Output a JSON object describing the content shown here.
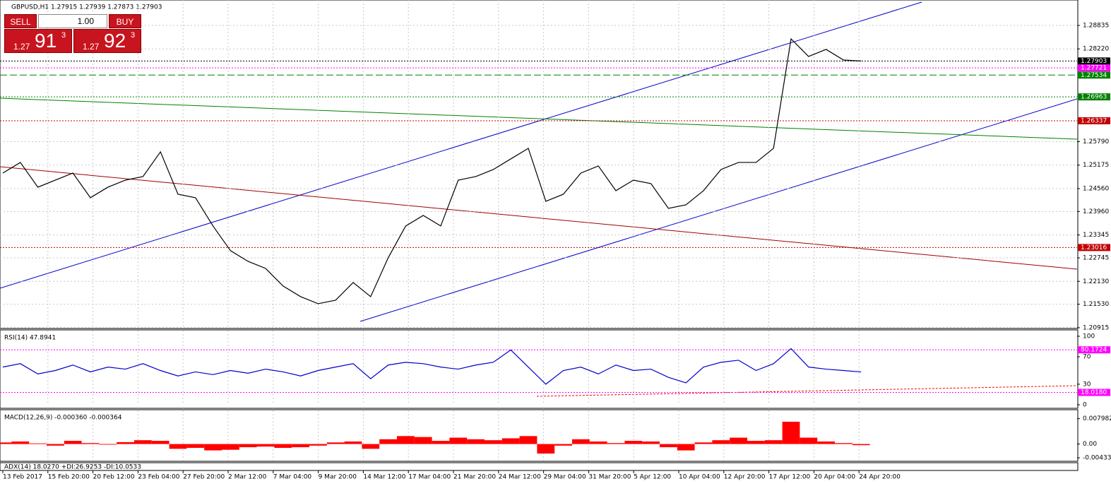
{
  "header": {
    "symbol": "GBPUSD,H1  1.27915 1.27939 1.27873 1.27903"
  },
  "trade_panel": {
    "sell": "SELL",
    "lots": "1.00",
    "buy": "BUY",
    "sell_big": "1.27",
    "sell_pips": "91",
    "sell_frac": "3",
    "buy_big": "1.27",
    "buy_pips": "92",
    "buy_frac": "3"
  },
  "chart_data": [
    {
      "type": "line",
      "color": "#000000",
      "values": [
        1.24967,
        1.25245,
        1.24597,
        1.24782,
        1.24967,
        1.2432,
        1.24597,
        1.24782,
        1.24875,
        1.25523,
        1.24412,
        1.2432,
        1.2358,
        1.22932,
        1.22654,
        1.22469,
        1.22007,
        1.21729,
        1.21544,
        1.21637,
        1.22099,
        1.21729,
        1.22747,
        1.2358,
        1.23857,
        1.2358,
        1.24782,
        1.24875,
        1.2506,
        1.25338,
        1.25615,
        1.24227,
        1.24412,
        1.24967,
        1.25153,
        1.24505,
        1.24782,
        1.2469,
        1.24042,
        1.24135,
        1.24505,
        1.2506,
        1.25245,
        1.25245,
        1.25615,
        1.28483,
        1.28021,
        1.28206,
        1.27928,
        1.27903
      ],
      "ylim": [
        1.20895,
        1.29501
      ],
      "yticks": [
        1.28835,
        {
          "value": 1.2822,
          "label": "1.28220"
        },
        {
          "value": 1.2579,
          "label": "1.25790"
        },
        1.25175,
        {
          "value": 1.2456,
          "label": "1.24560"
        },
        {
          "value": 1.2396,
          "label": "1.23960"
        },
        1.23345,
        1.22745,
        {
          "value": 1.2213,
          "label": "1.22130"
        },
        {
          "value": 1.2153,
          "label": "1.21530"
        },
        1.20915
      ],
      "grid": true,
      "levels": [
        {
          "value": 1.27903,
          "color": "#000000"
        },
        {
          "value": 1.27721,
          "color": "#ff00ff"
        },
        {
          "value": 1.27534,
          "color": "#008000"
        },
        {
          "value": 1.26963,
          "color": "#008000"
        },
        {
          "value": 1.26337,
          "color": "#c00000"
        },
        {
          "value": 1.23016,
          "color": "#c00000"
        }
      ]
    },
    {
      "type": "line",
      "title": "RSI(14) 47.8941",
      "color": "#0000cc",
      "values": [
        55,
        60,
        45,
        50,
        58,
        48,
        55,
        52,
        60,
        50,
        42,
        48,
        44,
        50,
        46,
        52,
        48,
        42,
        50,
        55,
        60,
        38,
        58,
        62,
        60,
        55,
        52,
        58,
        62,
        80,
        55,
        30,
        50,
        55,
        45,
        58,
        50,
        52,
        40,
        32,
        55,
        62,
        65,
        50,
        60,
        82,
        55,
        52,
        50,
        47.9
      ],
      "ylim": [
        0,
        100
      ],
      "yticks": [
        100,
        70,
        30,
        0
      ],
      "levels": [
        {
          "value": 80.1724,
          "label": "80.1724",
          "color": "#ff00ff"
        },
        {
          "value": 18.018,
          "label": "18.0180",
          "color": "#ff00ff"
        }
      ]
    },
    {
      "type": "bar",
      "title": "MACD(12,26,9) -0.000360 -0.000364",
      "color": "#ff0000",
      "values": [
        0.0005,
        0.0008,
        0.0002,
        -0.0005,
        0.001,
        0.0003,
        -0.0002,
        0.0006,
        0.0012,
        0.001,
        -0.0015,
        -0.0012,
        -0.002,
        -0.0018,
        -0.001,
        -0.0008,
        -0.0012,
        -0.001,
        -0.0005,
        0.0005,
        0.0008,
        -0.0015,
        0.0015,
        0.0025,
        0.0022,
        0.001,
        0.002,
        0.0015,
        0.0012,
        0.0018,
        0.0025,
        -0.003,
        -0.0005,
        0.0015,
        0.0008,
        0.0003,
        0.001,
        0.0008,
        -0.001,
        -0.002,
        0.0005,
        0.0012,
        0.002,
        0.001,
        0.0012,
        0.007,
        0.002,
        0.0008,
        0.0003,
        -0.00036
      ],
      "ylim": [
        -0.0052,
        0.0099
      ],
      "yticks": [
        0.007982,
        {
          "value": 0,
          "label": "0.00"
        },
        -0.004334
      ]
    }
  ],
  "adx": {
    "title": "ADX(14) 18.0270 +DI:26.9253 -DI:10.0533"
  },
  "time_labels": [
    "13 Feb 2017",
    "15 Feb 20:00",
    "20 Feb 12:00",
    "23 Feb 04:00",
    "27 Feb 20:00",
    "2 Mar 12:00",
    "7 Mar 04:00",
    "9 Mar 20:00",
    "14 Mar 12:00",
    "17 Mar 04:00",
    "21 Mar 20:00",
    "24 Mar 12:00",
    "29 Mar 04:00",
    "31 Mar 20:00",
    "5 Apr 12:00",
    "10 Apr 04:00",
    "12 Apr 20:00",
    "17 Apr 12:00",
    "20 Apr 04:00",
    "24 Apr 20:00"
  ]
}
